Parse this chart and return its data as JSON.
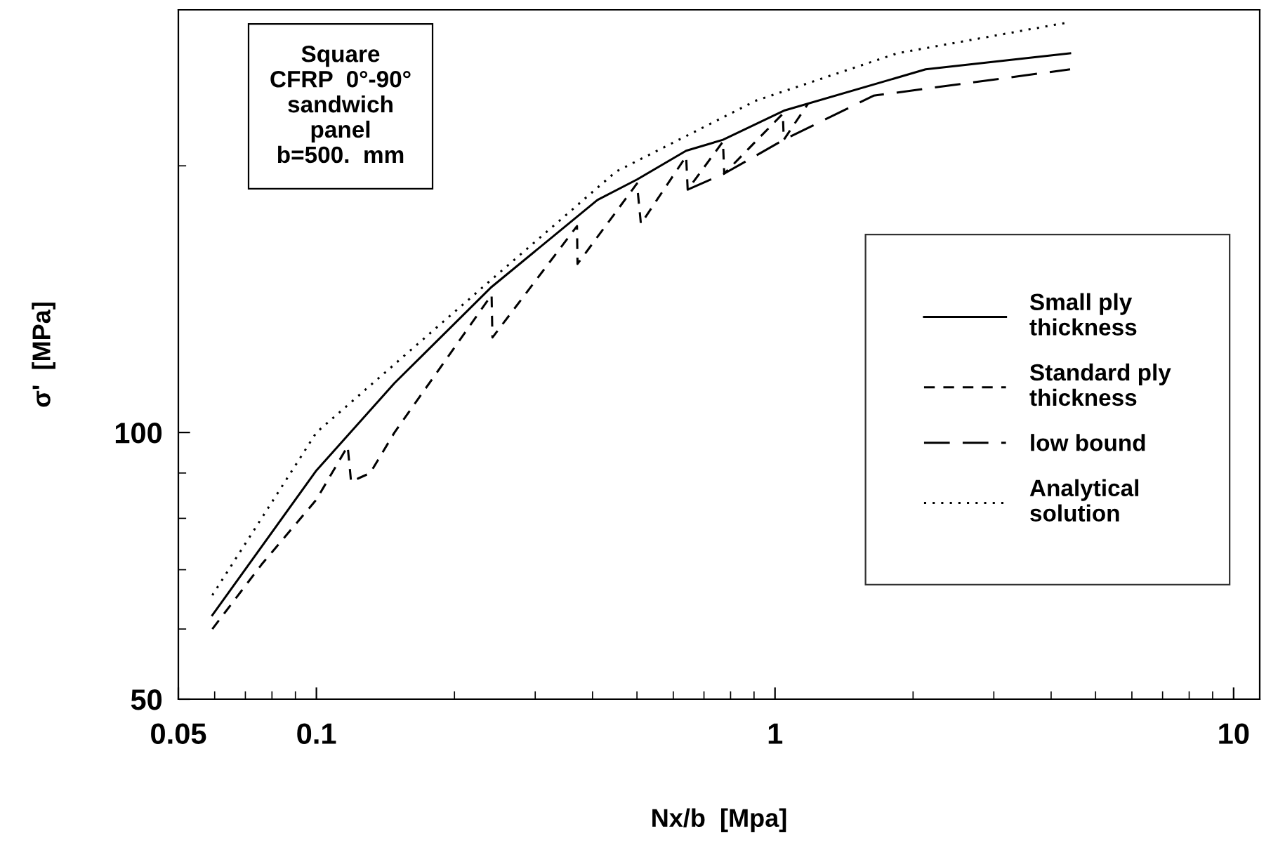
{
  "chart_data": {
    "type": "line",
    "xlabel": "Nx/b  [Mpa]",
    "ylabel": "σ'  [MPa]",
    "log": "xy",
    "xlim": [
      0.05,
      11.4
    ],
    "ylim": [
      50,
      300
    ],
    "xticks": [
      0.05,
      0.1,
      1,
      10
    ],
    "yticks": [
      50,
      100
    ],
    "grid": false,
    "legend": "right",
    "annotations": [
      "Square\nCFRP  0°-90°\nsandwich\npanel\nb=500.  mm"
    ],
    "series": [
      {
        "name": "Small ply\nthickness",
        "color": "#000000",
        "line_style": "solid",
        "x": [
          0.0593,
          0.1,
          0.148,
          0.241,
          0.41,
          0.5,
          0.64,
          0.77,
          1.05,
          2.13,
          4.4
        ],
        "values": [
          62.2,
          90.6,
          113.7,
          146,
          183,
          193,
          208,
          214,
          231,
          257,
          268
        ]
      },
      {
        "name": "Standard ply\nthickness",
        "color": "#000000",
        "line_style": "dashed",
        "x": [
          0.0593,
          0.076,
          0.1,
          0.117,
          0.119,
          0.131,
          0.148,
          0.241,
          0.242,
          0.37,
          0.371,
          0.5,
          0.51,
          0.64,
          0.645,
          0.77,
          0.775,
          1.04,
          1.045,
          1.18
        ],
        "values": [
          60,
          71,
          84,
          96.5,
          88,
          90,
          100,
          143,
          128,
          171,
          155,
          191,
          172,
          205,
          188,
          213,
          196,
          229,
          214,
          235
        ]
      },
      {
        "name": "low bound",
        "color": "#000000",
        "line_style": "longdash",
        "x": [
          0.645,
          0.775,
          1.045,
          1.64,
          4.4
        ],
        "values": [
          188,
          196,
          214,
          240,
          257
        ]
      },
      {
        "name": "Analytical\nsolution",
        "color": "#000000",
        "line_style": "dotted",
        "x": [
          0.0593,
          0.1,
          0.238,
          0.45,
          0.91,
          1.85,
          4.3
        ],
        "values": [
          65.5,
          100,
          148,
          197,
          237,
          268,
          290
        ]
      }
    ]
  }
}
